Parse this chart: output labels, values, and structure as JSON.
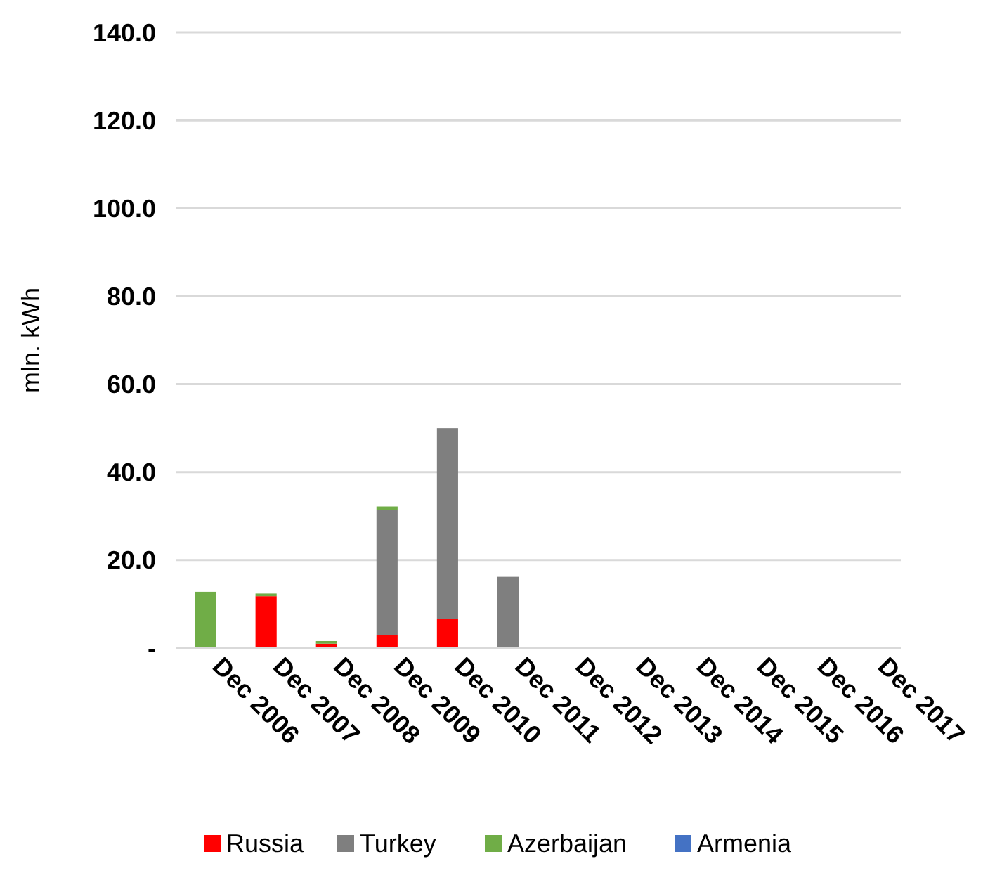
{
  "chart_data": {
    "type": "bar",
    "stacked": true,
    "ylabel": "mln. kWh",
    "categories": [
      "Dec 2006",
      "Dec 2007",
      "Dec 2008",
      "Dec 2009",
      "Dec 2010",
      "Dec 2011",
      "Dec 2012",
      "Dec 2013",
      "Dec 2014",
      "Dec 2015",
      "Dec 2016",
      "Dec 2017"
    ],
    "series": [
      {
        "name": "Russia",
        "color": "#ff0000",
        "values": [
          0,
          11.8,
          1.0,
          2.9,
          6.7,
          0,
          0.3,
          0,
          0.3,
          0,
          0,
          0.3
        ]
      },
      {
        "name": "Turkey",
        "color": "#7f7f7f",
        "values": [
          0,
          0,
          0,
          28.5,
          43.3,
          16.2,
          0,
          0.3,
          0,
          0,
          0,
          0
        ]
      },
      {
        "name": "Azerbaijan",
        "color": "#70ad47",
        "values": [
          12.8,
          0.6,
          0.6,
          0.8,
          0,
          0,
          0,
          0,
          0,
          0,
          0.3,
          0
        ]
      },
      {
        "name": "Armenia",
        "color": "#4472c4",
        "values": [
          0,
          0,
          0,
          0,
          0,
          0,
          0,
          0,
          0,
          0,
          0,
          0
        ]
      }
    ],
    "ylim": [
      0,
      140
    ],
    "yticks": [
      {
        "value": 0,
        "label": "-"
      },
      {
        "value": 20,
        "label": "20.0"
      },
      {
        "value": 40,
        "label": "40.0"
      },
      {
        "value": 60,
        "label": "60.0"
      },
      {
        "value": 80,
        "label": "80.0"
      },
      {
        "value": 100,
        "label": "100.0"
      },
      {
        "value": 120,
        "label": "120.0"
      },
      {
        "value": 140,
        "label": "140.0"
      }
    ],
    "grid": "y",
    "legend": "bottom"
  }
}
